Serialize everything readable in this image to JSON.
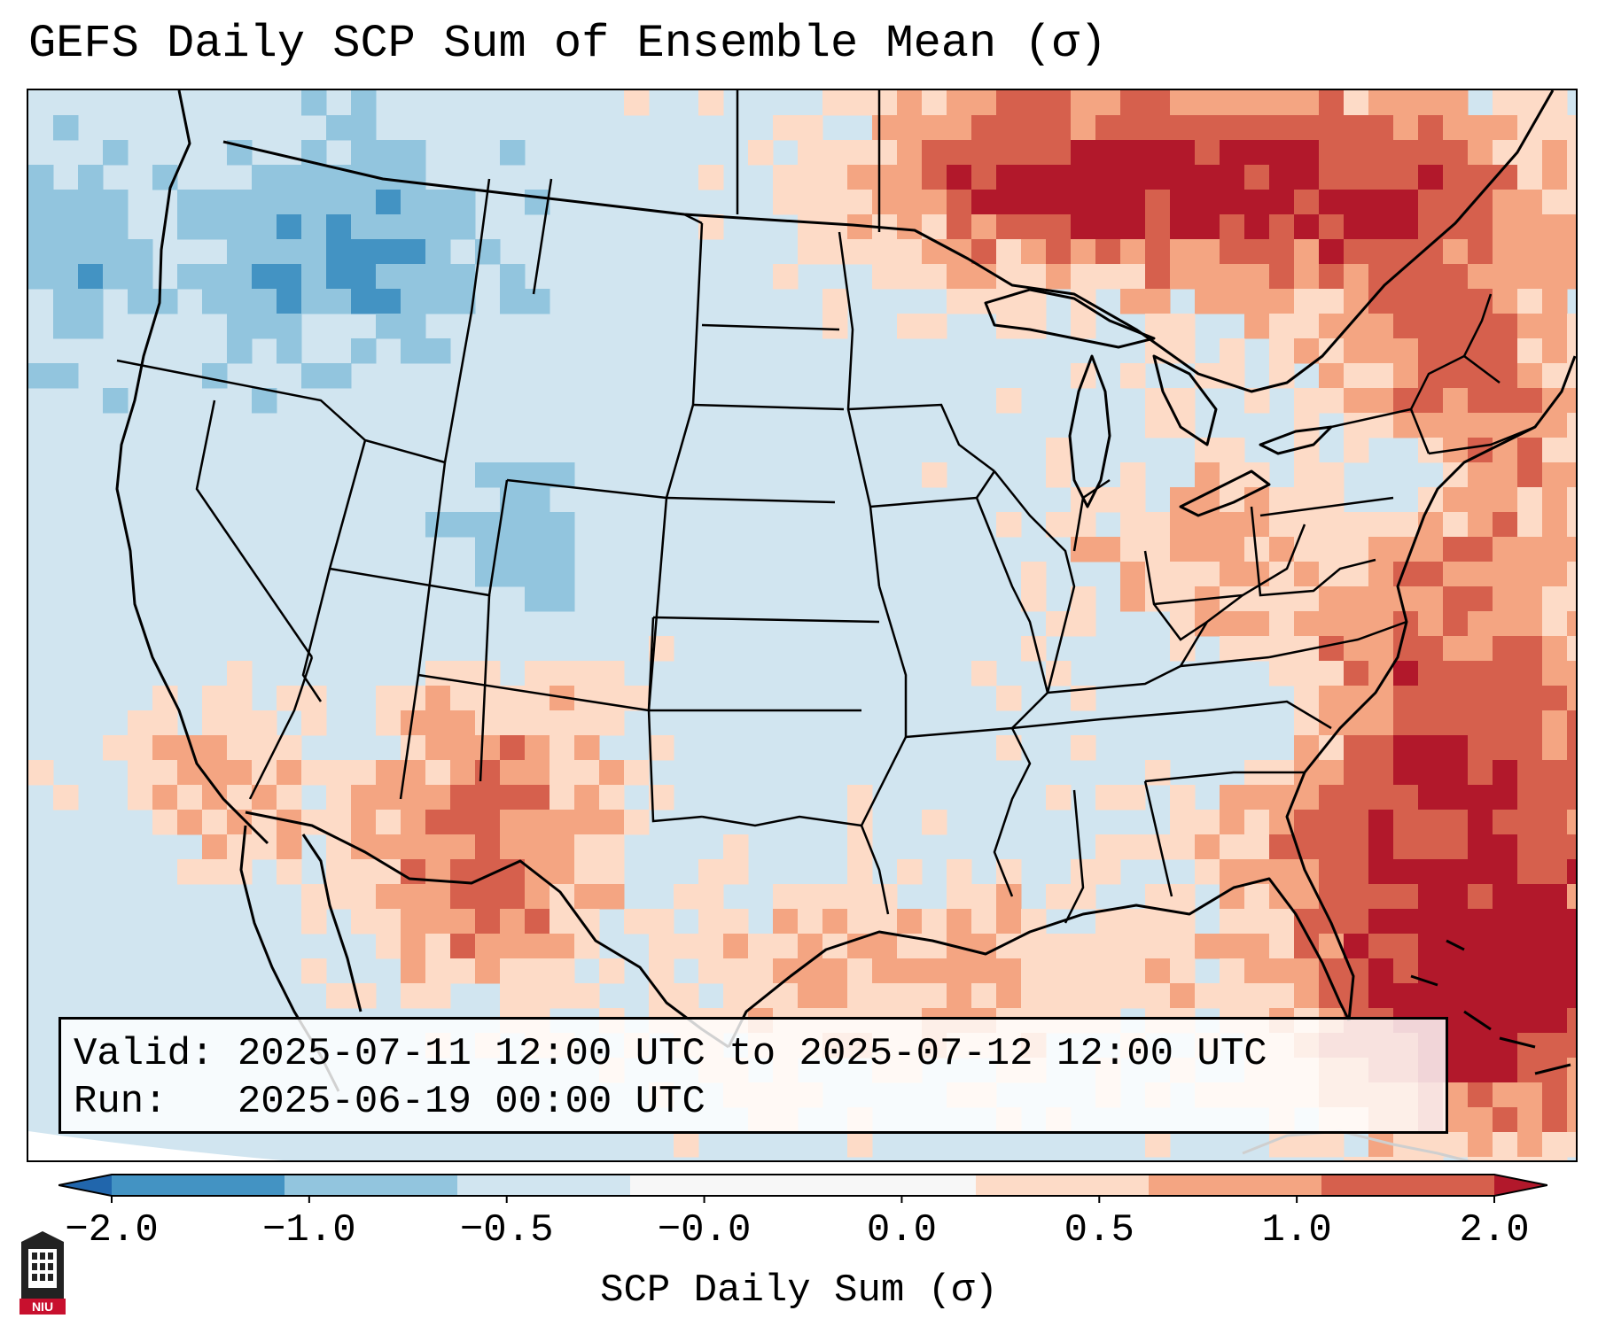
{
  "title": "GEFS Daily SCP Sum of Ensemble Mean (σ)",
  "info": {
    "valid_label": "Valid:",
    "valid_value": "2025-07-11 12:00 UTC to 2025-07-12 12:00 UTC",
    "run_label": "Run:",
    "run_value": "2025-06-19 00:00 UTC"
  },
  "colorbar": {
    "label": "SCP Daily Sum (σ)",
    "ticks": [
      "−2.0",
      "−1.0",
      "−0.5",
      "−0.0",
      "0.0",
      "0.5",
      "1.0",
      "2.0"
    ],
    "colors": [
      "#2166ac",
      "#4393c3",
      "#92c5de",
      "#d1e5f0",
      "#f7f7f7",
      "#fddbc7",
      "#f4a582",
      "#d6604d",
      "#b2182b"
    ]
  },
  "logo": {
    "text": "NIU",
    "icon": "niu-seal-icon"
  }
}
